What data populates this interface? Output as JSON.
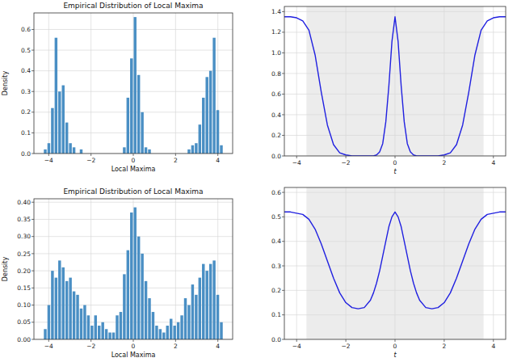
{
  "chart_data": [
    {
      "type": "histogram",
      "title": "Empirical Distribution of Local Maxima",
      "x_label": "Local Maxima",
      "y_label": "Density",
      "bins": [
        -4.25,
        -4.08,
        -3.91,
        -3.74,
        -3.57,
        -3.4,
        -3.23,
        -3.06,
        -2.89,
        -2.72,
        -2.55,
        -2.38,
        -2.21,
        -2.04,
        -1.87,
        -1.7,
        -1.53,
        -1.36,
        -1.19,
        -1.02,
        -0.85,
        -0.68,
        -0.51,
        -0.34,
        -0.17,
        0,
        0.17,
        0.34,
        0.51,
        0.68,
        0.85,
        1.02,
        1.19,
        1.36,
        1.53,
        1.7,
        1.87,
        2.04,
        2.21,
        2.38,
        2.55,
        2.72,
        2.89,
        3.06,
        3.23,
        3.4,
        3.57,
        3.74,
        3.91,
        4.08,
        4.25
      ],
      "values": [
        0.02,
        0.05,
        0.22,
        0.56,
        0.3,
        0.33,
        0.15,
        0.05,
        0.03,
        0,
        0.02,
        0,
        0,
        0,
        0,
        0,
        0,
        0,
        0,
        0,
        0,
        0,
        0.03,
        0.27,
        0.46,
        0.66,
        0.38,
        0.2,
        0.03,
        0.02,
        0,
        0,
        0,
        0,
        0,
        0,
        0,
        0,
        0,
        0,
        0.02,
        0.04,
        0.05,
        0.14,
        0.27,
        0.37,
        0.4,
        0.56,
        0.21,
        0.04
      ],
      "color": "#4a8fc4",
      "xlim": [
        -4.7,
        4.7
      ],
      "ylim": [
        0,
        0.68
      ],
      "xticks": [
        {
          "value": -4,
          "label": "−4"
        },
        {
          "value": -2,
          "label": "−2"
        },
        0,
        2,
        4
      ],
      "yticks": [
        {
          "value": 0,
          "label": "0.0"
        },
        {
          "value": 0.1,
          "label": "0.1"
        },
        {
          "value": 0.2,
          "label": "0.2"
        },
        {
          "value": 0.3,
          "label": "0.3"
        },
        {
          "value": 0.4,
          "label": "0.4"
        },
        {
          "value": 0.5,
          "label": "0.5"
        },
        {
          "value": 0.6,
          "label": "0.6"
        }
      ],
      "grid": true
    },
    {
      "type": "line",
      "x_label": "t",
      "x": [
        -4.5,
        -4.25,
        -4,
        -3.75,
        -3.5,
        -3.25,
        -3,
        -2.75,
        -2.5,
        -2.25,
        -2,
        -1.75,
        -1.5,
        -1.25,
        -1,
        -0.875,
        -0.75,
        -0.625,
        -0.5,
        -0.375,
        -0.25,
        -0.125,
        0,
        0.125,
        0.25,
        0.375,
        0.5,
        0.625,
        0.75,
        0.875,
        1,
        1.25,
        1.5,
        1.75,
        2,
        2.25,
        2.5,
        2.75,
        3,
        3.25,
        3.5,
        3.75,
        4,
        4.25,
        4.5
      ],
      "series": [
        {
          "color": "#2020e0",
          "values": [
            1.35,
            1.35,
            1.34,
            1.31,
            1.22,
            0.98,
            0.62,
            0.3,
            0.11,
            0.03,
            0.01,
            0,
            0,
            0,
            0,
            0,
            0.01,
            0.04,
            0.12,
            0.33,
            0.68,
            1.11,
            1.35,
            1.11,
            0.68,
            0.33,
            0.12,
            0.04,
            0.01,
            0,
            0,
            0,
            0,
            0,
            0.01,
            0.03,
            0.11,
            0.3,
            0.62,
            0.98,
            1.22,
            1.31,
            1.34,
            1.35,
            1.35
          ]
        }
      ],
      "shaded_region": [
        -3.6,
        3.6
      ],
      "xlim": [
        -4.5,
        4.5
      ],
      "ylim": [
        0,
        1.45
      ],
      "xticks": [
        {
          "value": -4,
          "label": "−4"
        },
        {
          "value": -2,
          "label": "−2"
        },
        0,
        2,
        4
      ],
      "yticks": [
        {
          "value": 0,
          "label": "0.0"
        },
        {
          "value": 0.2,
          "label": "0.2"
        },
        {
          "value": 0.4,
          "label": "0.4"
        },
        {
          "value": 0.6,
          "label": "0.6"
        },
        {
          "value": 0.8,
          "label": "0.8"
        },
        {
          "value": 1,
          "label": "1.0"
        },
        {
          "value": 1.2,
          "label": "1.2"
        },
        {
          "value": 1.4,
          "label": "1.4"
        }
      ],
      "grid": true
    },
    {
      "type": "histogram",
      "title": "Empirical Distribution of Local Maxima",
      "x_label": "Local Maxima",
      "y_label": "Density",
      "bins": [
        -4.25,
        -4.08,
        -3.91,
        -3.74,
        -3.57,
        -3.4,
        -3.23,
        -3.06,
        -2.89,
        -2.72,
        -2.55,
        -2.38,
        -2.21,
        -2.04,
        -1.87,
        -1.7,
        -1.53,
        -1.36,
        -1.19,
        -1.02,
        -0.85,
        -0.68,
        -0.51,
        -0.34,
        -0.17,
        0,
        0.17,
        0.34,
        0.51,
        0.68,
        0.85,
        1.02,
        1.19,
        1.36,
        1.53,
        1.7,
        1.87,
        2.04,
        2.21,
        2.38,
        2.55,
        2.72,
        2.89,
        3.06,
        3.23,
        3.4,
        3.57,
        3.74,
        3.91,
        4.08,
        4.25
      ],
      "values": [
        0.03,
        0.1,
        0.2,
        0.18,
        0.23,
        0.21,
        0.17,
        0.18,
        0.14,
        0.13,
        0.09,
        0.1,
        0.07,
        0.04,
        0.07,
        0.04,
        0.05,
        0.03,
        0.02,
        0.02,
        0.07,
        0.08,
        0.19,
        0.26,
        0.37,
        0.385,
        0.3,
        0.25,
        0.17,
        0.12,
        0.08,
        0.04,
        0.03,
        0.02,
        0.04,
        0.06,
        0.04,
        0.05,
        0.07,
        0.12,
        0.1,
        0.16,
        0.13,
        0.18,
        0.22,
        0.2,
        0.22,
        0.23,
        0.13,
        0.05
      ],
      "color": "#4a8fc4",
      "xlim": [
        -4.7,
        4.7
      ],
      "ylim": [
        0,
        0.41
      ],
      "xticks": [
        {
          "value": -4,
          "label": "−4"
        },
        {
          "value": -2,
          "label": "−2"
        },
        0,
        2,
        4
      ],
      "yticks": [
        {
          "value": 0,
          "label": "0.00"
        },
        {
          "value": 0.05,
          "label": "0.05"
        },
        {
          "value": 0.1,
          "label": "0.10"
        },
        {
          "value": 0.15,
          "label": "0.15"
        },
        {
          "value": 0.2,
          "label": "0.20"
        },
        {
          "value": 0.25,
          "label": "0.25"
        },
        {
          "value": 0.3,
          "label": "0.30"
        },
        {
          "value": 0.35,
          "label": "0.35"
        },
        {
          "value": 0.4,
          "label": "0.40"
        }
      ],
      "grid": true
    },
    {
      "type": "line",
      "x_label": "t",
      "x": [
        -4.5,
        -4.25,
        -4,
        -3.75,
        -3.5,
        -3.25,
        -3,
        -2.75,
        -2.5,
        -2.25,
        -2,
        -1.75,
        -1.5,
        -1.25,
        -1,
        -0.875,
        -0.75,
        -0.625,
        -0.5,
        -0.375,
        -0.25,
        -0.125,
        0,
        0.125,
        0.25,
        0.375,
        0.5,
        0.625,
        0.75,
        0.875,
        1,
        1.25,
        1.5,
        1.75,
        2,
        2.25,
        2.5,
        2.75,
        3,
        3.25,
        3.5,
        3.75,
        4,
        4.25,
        4.5
      ],
      "series": [
        {
          "color": "#2020e0",
          "values": [
            0.52,
            0.52,
            0.515,
            0.51,
            0.49,
            0.45,
            0.39,
            0.32,
            0.25,
            0.19,
            0.15,
            0.13,
            0.125,
            0.13,
            0.16,
            0.19,
            0.23,
            0.28,
            0.34,
            0.4,
            0.46,
            0.5,
            0.52,
            0.5,
            0.46,
            0.4,
            0.34,
            0.28,
            0.23,
            0.19,
            0.16,
            0.13,
            0.125,
            0.13,
            0.15,
            0.19,
            0.25,
            0.32,
            0.39,
            0.45,
            0.49,
            0.51,
            0.515,
            0.52,
            0.52
          ]
        }
      ],
      "shaded_region": [
        -3.6,
        3.6
      ],
      "xlim": [
        -4.5,
        4.5
      ],
      "ylim": [
        0,
        0.62
      ],
      "xticks": [
        {
          "value": -4,
          "label": "−4"
        },
        {
          "value": -2,
          "label": "−2"
        },
        0,
        2,
        4
      ],
      "yticks": [
        {
          "value": 0,
          "label": "0.0"
        },
        {
          "value": 0.1,
          "label": "0.1"
        },
        {
          "value": 0.2,
          "label": "0.2"
        },
        {
          "value": 0.3,
          "label": "0.3"
        },
        {
          "value": 0.4,
          "label": "0.4"
        },
        {
          "value": 0.5,
          "label": "0.5"
        },
        {
          "value": 0.6,
          "label": "0.6"
        }
      ],
      "grid": true
    }
  ]
}
